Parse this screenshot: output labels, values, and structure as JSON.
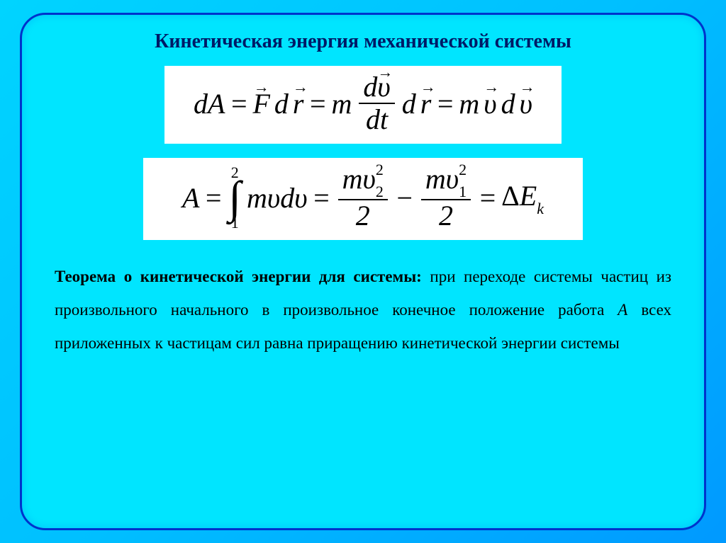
{
  "title": "Кинетическая энергия механической системы",
  "formula1": {
    "lhs_dA": "dA",
    "eq": "=",
    "F": "F",
    "dr": "dr",
    "m": "m",
    "dv": "dυ",
    "dt": "dt",
    "mvdv_m": "m",
    "v": "υ",
    "d": "d"
  },
  "formula2": {
    "A": "A",
    "eq": "=",
    "int_upper": "2",
    "int_lower": "1",
    "integrand_m": "m",
    "integrand_v": "υ",
    "integrand_d": "d",
    "integrand_v2": "υ",
    "frac1_num_m": "m",
    "frac1_num_v": "υ",
    "frac1_num_sub": "2",
    "frac1_num_sup": "2",
    "frac1_den": "2",
    "frac2_num_m": "m",
    "frac2_num_v": "υ",
    "frac2_num_sub": "1",
    "frac2_num_sup": "2",
    "frac2_den": "2",
    "minus": "−",
    "delta": "Δ",
    "E": "E",
    "k": "k"
  },
  "theorem": {
    "lead": "Теорема о кинетической энергии для системы:",
    "p1": " при переходе системы частиц из произвольного начального в произвольное конечное положение работа ",
    "var": "A",
    "p2": " всех приложенных к частицам сил равна приращению кинетической энергии системы"
  },
  "style": {
    "card_bg": "#00e5ff",
    "card_border": "#0033cc",
    "title_color": "#001a66",
    "formula_bg": "#ffffff",
    "title_fontsize": 28,
    "formula_fontsize": 40,
    "paragraph_fontsize": 23,
    "paragraph_lineheight": 2.05
  }
}
